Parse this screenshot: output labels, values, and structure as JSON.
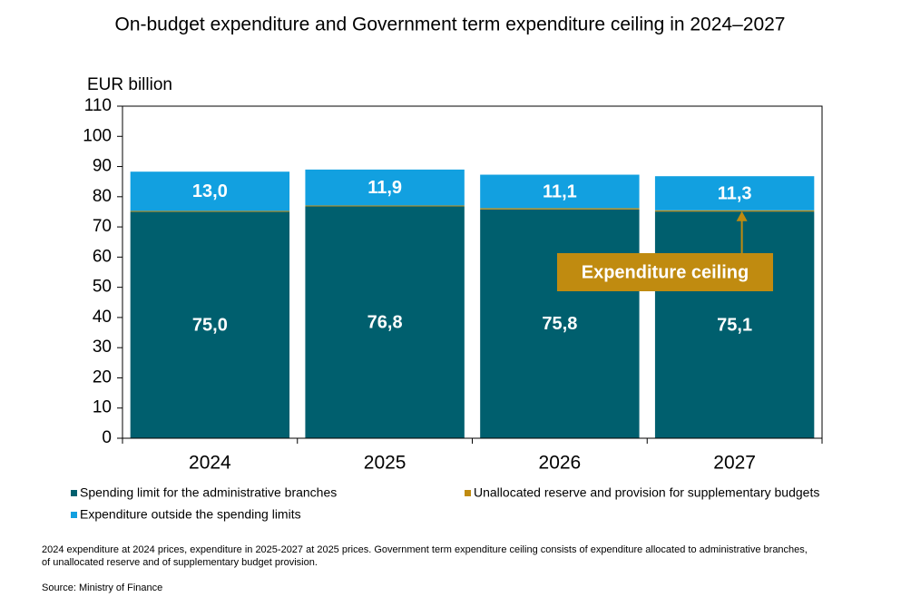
{
  "chart_data": {
    "type": "stacked-bar",
    "title": "On-budget expenditure and Government term expenditure ceiling in 2024–2027",
    "y_axis_label": "EUR billion",
    "categories": [
      "2024",
      "2025",
      "2026",
      "2027"
    ],
    "series": [
      {
        "name": "Spending limit for the administrative branches",
        "color": "#005f6e",
        "values": [
          75.0,
          76.8,
          75.8,
          75.1
        ],
        "value_labels": [
          "75,0",
          "76,8",
          "75,8",
          "75,1"
        ]
      },
      {
        "name": "Unallocated reserve and provision for supplementary budgets",
        "color": "#c08b10",
        "values": [
          0.3,
          0.3,
          0.4,
          0.4
        ]
      },
      {
        "name": "Expenditure outside the spending limits",
        "color": "#12a0e0",
        "values": [
          13.0,
          11.9,
          11.1,
          11.3
        ],
        "value_labels": [
          "13,0",
          "11,9",
          "11,1",
          "11,3"
        ]
      }
    ],
    "ylim": [
      0,
      110
    ],
    "yticks": [
      0,
      10,
      20,
      30,
      40,
      50,
      60,
      70,
      80,
      90,
      100,
      110
    ],
    "annotation": "Expenditure ceiling",
    "annotation_color": "#c08b10",
    "notes": [
      "2024 expenditure at 2024 prices, expenditure in 2025-2027 at 2025 prices. Government term expenditure ceiling consists of expenditure allocated to administrative branches,",
      "of unallocated reserve and of supplementary budget provision."
    ],
    "source": "Source: Ministry of Finance"
  }
}
